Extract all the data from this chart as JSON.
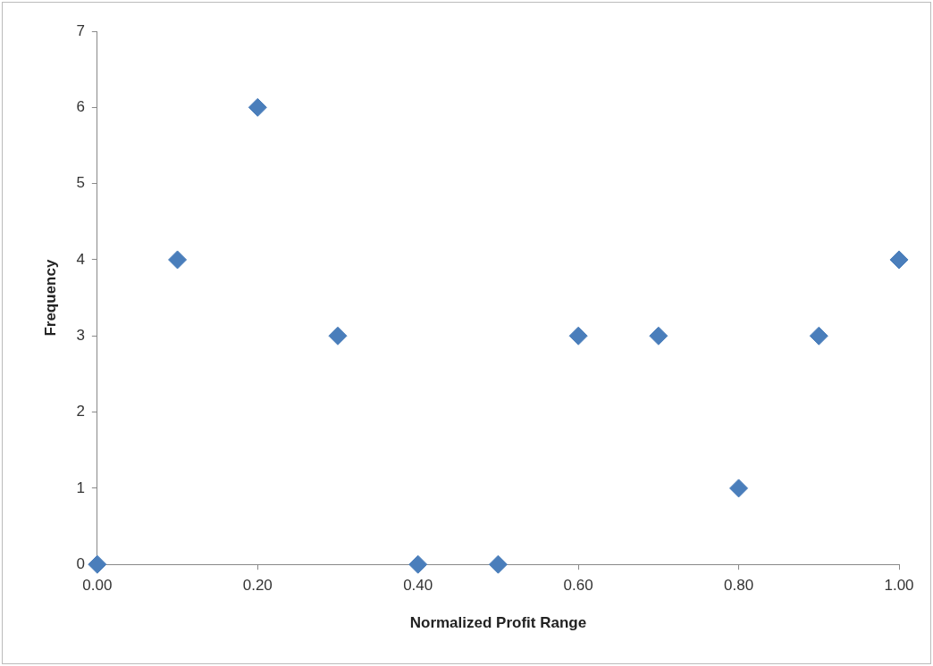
{
  "chart_data": {
    "type": "scatter",
    "xlabel": "Normalized Profit Range",
    "ylabel": "Frequency",
    "x": [
      0,
      0.1,
      0.2,
      0.3,
      0.4,
      0.5,
      0.6,
      0.7,
      0.8,
      0.9,
      1.0
    ],
    "series": [
      {
        "color": "#4a7ebb",
        "values": [
          0,
          4,
          6,
          3,
          0,
          0,
          3,
          3,
          1,
          3,
          4
        ]
      }
    ],
    "xlim": [
      0,
      1
    ],
    "xticks": [
      {
        "value": 0,
        "label": "0.00"
      },
      {
        "value": 0.2,
        "label": "0.20"
      },
      {
        "value": 0.4,
        "label": "0.40"
      },
      {
        "value": 0.6,
        "label": "0.60"
      },
      {
        "value": 0.8,
        "label": "0.80"
      },
      {
        "value": 1,
        "label": "1.00"
      }
    ],
    "ylim": [
      0,
      7
    ],
    "yticks": [
      0,
      1,
      2,
      3,
      4,
      5,
      6,
      7
    ],
    "grid": false,
    "legend": false,
    "marker": "diamond"
  }
}
